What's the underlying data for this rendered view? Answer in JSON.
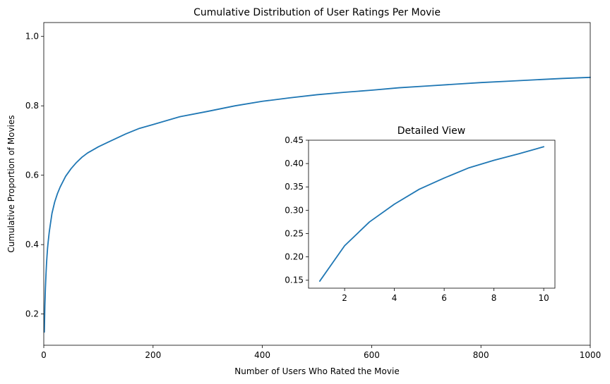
{
  "chart_data": [
    {
      "type": "line",
      "title": "Cumulative Distribution of User Ratings Per Movie",
      "xlabel": "Number of Users Who Rated the Movie",
      "ylabel": "Cumulative Proportion of Movies",
      "xlim": [
        0,
        1000
      ],
      "ylim": [
        0.11,
        1.04
      ],
      "xticks": [
        0,
        200,
        400,
        600,
        800,
        1000
      ],
      "yticks": [
        0.2,
        0.4,
        0.6,
        0.8,
        1.0
      ],
      "xtick_labels": [
        "0",
        "200",
        "400",
        "600",
        "800",
        "1000"
      ],
      "ytick_labels": [
        "0.2",
        "0.4",
        "0.6",
        "0.8",
        "1.0"
      ],
      "grid": false,
      "color": "#1f77b4",
      "series": [
        {
          "x": [
            1,
            2,
            3,
            4,
            5,
            6,
            7,
            8,
            10,
            12,
            15,
            20,
            25,
            30,
            40,
            50,
            60,
            70,
            80,
            100,
            120,
            150,
            175,
            200,
            250,
            300,
            350,
            400,
            450,
            500,
            550,
            600,
            650,
            700,
            750,
            800,
            850,
            900,
            950,
            1000
          ],
          "y": [
            0.148,
            0.224,
            0.275,
            0.313,
            0.345,
            0.369,
            0.391,
            0.407,
            0.436,
            0.458,
            0.49,
            0.523,
            0.547,
            0.566,
            0.597,
            0.619,
            0.637,
            0.652,
            0.664,
            0.682,
            0.697,
            0.719,
            0.735,
            0.746,
            0.769,
            0.784,
            0.8,
            0.813,
            0.823,
            0.832,
            0.839,
            0.845,
            0.852,
            0.857,
            0.862,
            0.867,
            0.871,
            0.875,
            0.879,
            0.882
          ]
        }
      ]
    },
    {
      "type": "line",
      "title": "Detailed View",
      "xlabel": "",
      "ylabel": "",
      "xlim": [
        0.55,
        10.45
      ],
      "ylim": [
        0.133,
        0.45
      ],
      "xticks": [
        2,
        4,
        6,
        8,
        10
      ],
      "yticks": [
        0.15,
        0.2,
        0.25,
        0.3,
        0.35,
        0.4,
        0.45
      ],
      "xtick_labels": [
        "2",
        "4",
        "6",
        "8",
        "10"
      ],
      "ytick_labels": [
        "0.15",
        "0.20",
        "0.25",
        "0.30",
        "0.35",
        "0.40",
        "0.45"
      ],
      "grid": false,
      "color": "#1f77b4",
      "series": [
        {
          "x": [
            1,
            2,
            3,
            4,
            5,
            6,
            7,
            8,
            9,
            10
          ],
          "y": [
            0.148,
            0.224,
            0.275,
            0.313,
            0.345,
            0.369,
            0.391,
            0.407,
            0.421,
            0.436
          ]
        }
      ]
    }
  ]
}
